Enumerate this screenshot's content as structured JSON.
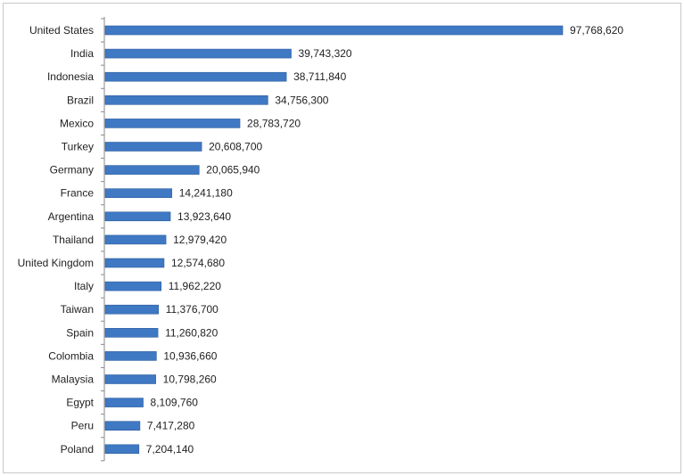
{
  "chart_data": {
    "type": "bar",
    "orientation": "horizontal",
    "title": "",
    "xlabel": "",
    "ylabel": "",
    "categories": [
      "United States",
      "India",
      "Indonesia",
      "Brazil",
      "Mexico",
      "Turkey",
      "Germany",
      "France",
      "Argentina",
      "Thailand",
      "United Kingdom",
      "Italy",
      "Taiwan",
      "Spain",
      "Colombia",
      "Malaysia",
      "Egypt",
      "Peru",
      "Poland"
    ],
    "values": [
      97768620,
      39743320,
      38711840,
      34756300,
      28783720,
      20608700,
      20065940,
      14241180,
      13923640,
      12979420,
      12574680,
      11962220,
      11376700,
      11260820,
      10936660,
      10798260,
      8109760,
      7417280,
      7204140
    ],
    "value_labels": [
      "97,768,620",
      "39,743,320",
      "38,711,840",
      "34,756,300",
      "28,783,720",
      "20,608,700",
      "20,065,940",
      "14,241,180",
      "13,923,640",
      "12,979,420",
      "12,574,680",
      "11,962,220",
      "11,376,700",
      "11,260,820",
      "10,936,660",
      "10,798,260",
      "8,109,760",
      "7,417,280",
      "7,204,140"
    ],
    "xlim": [
      0,
      97768620
    ],
    "grid": false,
    "legend": "none",
    "bar_color": "#3f78c3",
    "bar_edge_color": "#2f5f9e"
  }
}
